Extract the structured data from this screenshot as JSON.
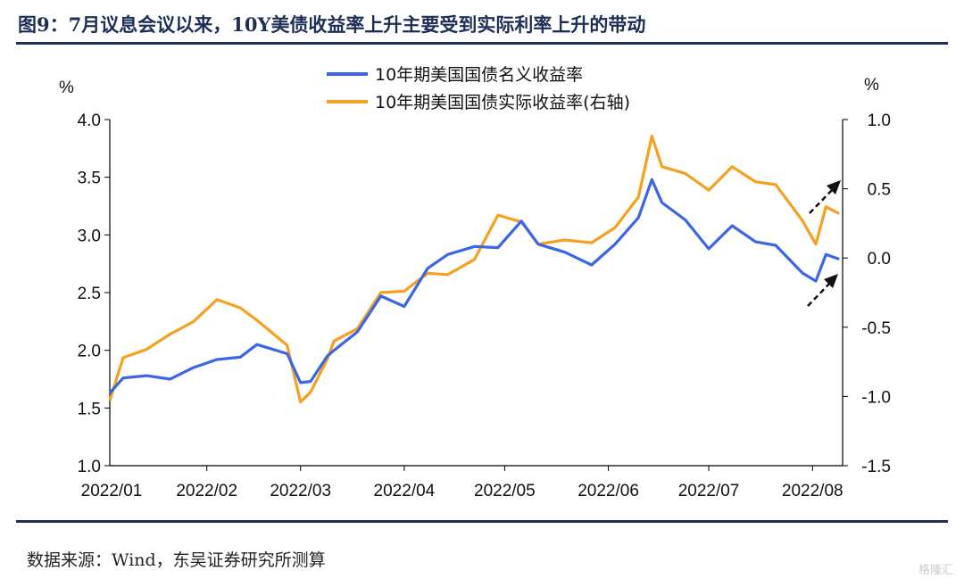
{
  "title": "图9：7月议息会议以来，10Y美债收益率上升主要受到实际利率上升的带动",
  "source": "数据来源：Wind，东吴证券研究所测算",
  "watermark": "格隆汇",
  "colors": {
    "nominal": "#3a66e6",
    "real": "#f5a020",
    "rule": "#1d2f57"
  },
  "chart_data": {
    "type": "line",
    "left_unit": "%",
    "right_unit": "%",
    "ylim_left": [
      1.0,
      4.0
    ],
    "ylim_right": [
      -1.5,
      1.0
    ],
    "left_ticks": [
      "4.0",
      "3.5",
      "3.0",
      "2.5",
      "2.0",
      "1.5",
      "1.0"
    ],
    "right_ticks": [
      "1.0",
      "0.5",
      "0.0",
      "-0.5",
      "-1.0",
      "-1.5"
    ],
    "x_ticks": [
      "2022/01",
      "2022/02",
      "2022/03",
      "2022/04",
      "2022/05",
      "2022/06",
      "2022/07",
      "2022/08"
    ],
    "legend": [
      "10年期美国国债名义收益率",
      "10年期美国国债实际收益率(右轴)"
    ],
    "series": [
      {
        "name": "10年期美国国债名义收益率",
        "axis": "left",
        "x": [
          "2022-01-03",
          "2022-01-07",
          "2022-01-14",
          "2022-01-21",
          "2022-01-28",
          "2022-02-04",
          "2022-02-11",
          "2022-02-16",
          "2022-02-25",
          "2022-03-01",
          "2022-03-04",
          "2022-03-09",
          "2022-03-11",
          "2022-03-18",
          "2022-03-25",
          "2022-04-01",
          "2022-04-08",
          "2022-04-14",
          "2022-04-22",
          "2022-04-29",
          "2022-05-06",
          "2022-05-11",
          "2022-05-19",
          "2022-05-27",
          "2022-06-03",
          "2022-06-10",
          "2022-06-14",
          "2022-06-17",
          "2022-06-24",
          "2022-07-01",
          "2022-07-08",
          "2022-07-15",
          "2022-07-21",
          "2022-07-29",
          "2022-08-02",
          "2022-08-05",
          "2022-08-09"
        ],
        "values": [
          1.63,
          1.76,
          1.78,
          1.75,
          1.85,
          1.92,
          1.94,
          2.05,
          1.97,
          1.72,
          1.73,
          1.95,
          2.0,
          2.16,
          2.47,
          2.38,
          2.71,
          2.83,
          2.9,
          2.89,
          3.12,
          2.92,
          2.85,
          2.74,
          2.92,
          3.15,
          3.48,
          3.28,
          3.13,
          2.88,
          3.08,
          2.94,
          2.91,
          2.67,
          2.6,
          2.83,
          2.79
        ]
      },
      {
        "name": "10年期美国国债实际收益率(右轴)",
        "axis": "right",
        "x": [
          "2022-01-03",
          "2022-01-07",
          "2022-01-14",
          "2022-01-21",
          "2022-01-28",
          "2022-02-04",
          "2022-02-11",
          "2022-02-16",
          "2022-02-25",
          "2022-03-01",
          "2022-03-04",
          "2022-03-09",
          "2022-03-11",
          "2022-03-18",
          "2022-03-25",
          "2022-04-01",
          "2022-04-08",
          "2022-04-14",
          "2022-04-22",
          "2022-04-29",
          "2022-05-06",
          "2022-05-11",
          "2022-05-19",
          "2022-05-27",
          "2022-06-03",
          "2022-06-10",
          "2022-06-14",
          "2022-06-17",
          "2022-06-24",
          "2022-07-01",
          "2022-07-08",
          "2022-07-15",
          "2022-07-21",
          "2022-07-29",
          "2022-08-02",
          "2022-08-05",
          "2022-08-09"
        ],
        "values": [
          -1.03,
          -0.72,
          -0.66,
          -0.55,
          -0.46,
          -0.3,
          -0.36,
          -0.45,
          -0.63,
          -1.04,
          -0.97,
          -0.73,
          -0.6,
          -0.51,
          -0.25,
          -0.24,
          -0.11,
          -0.12,
          -0.01,
          0.31,
          0.26,
          0.1,
          0.13,
          0.11,
          0.22,
          0.44,
          0.88,
          0.66,
          0.61,
          0.49,
          0.66,
          0.55,
          0.53,
          0.27,
          0.1,
          0.37,
          0.32
        ]
      }
    ]
  }
}
